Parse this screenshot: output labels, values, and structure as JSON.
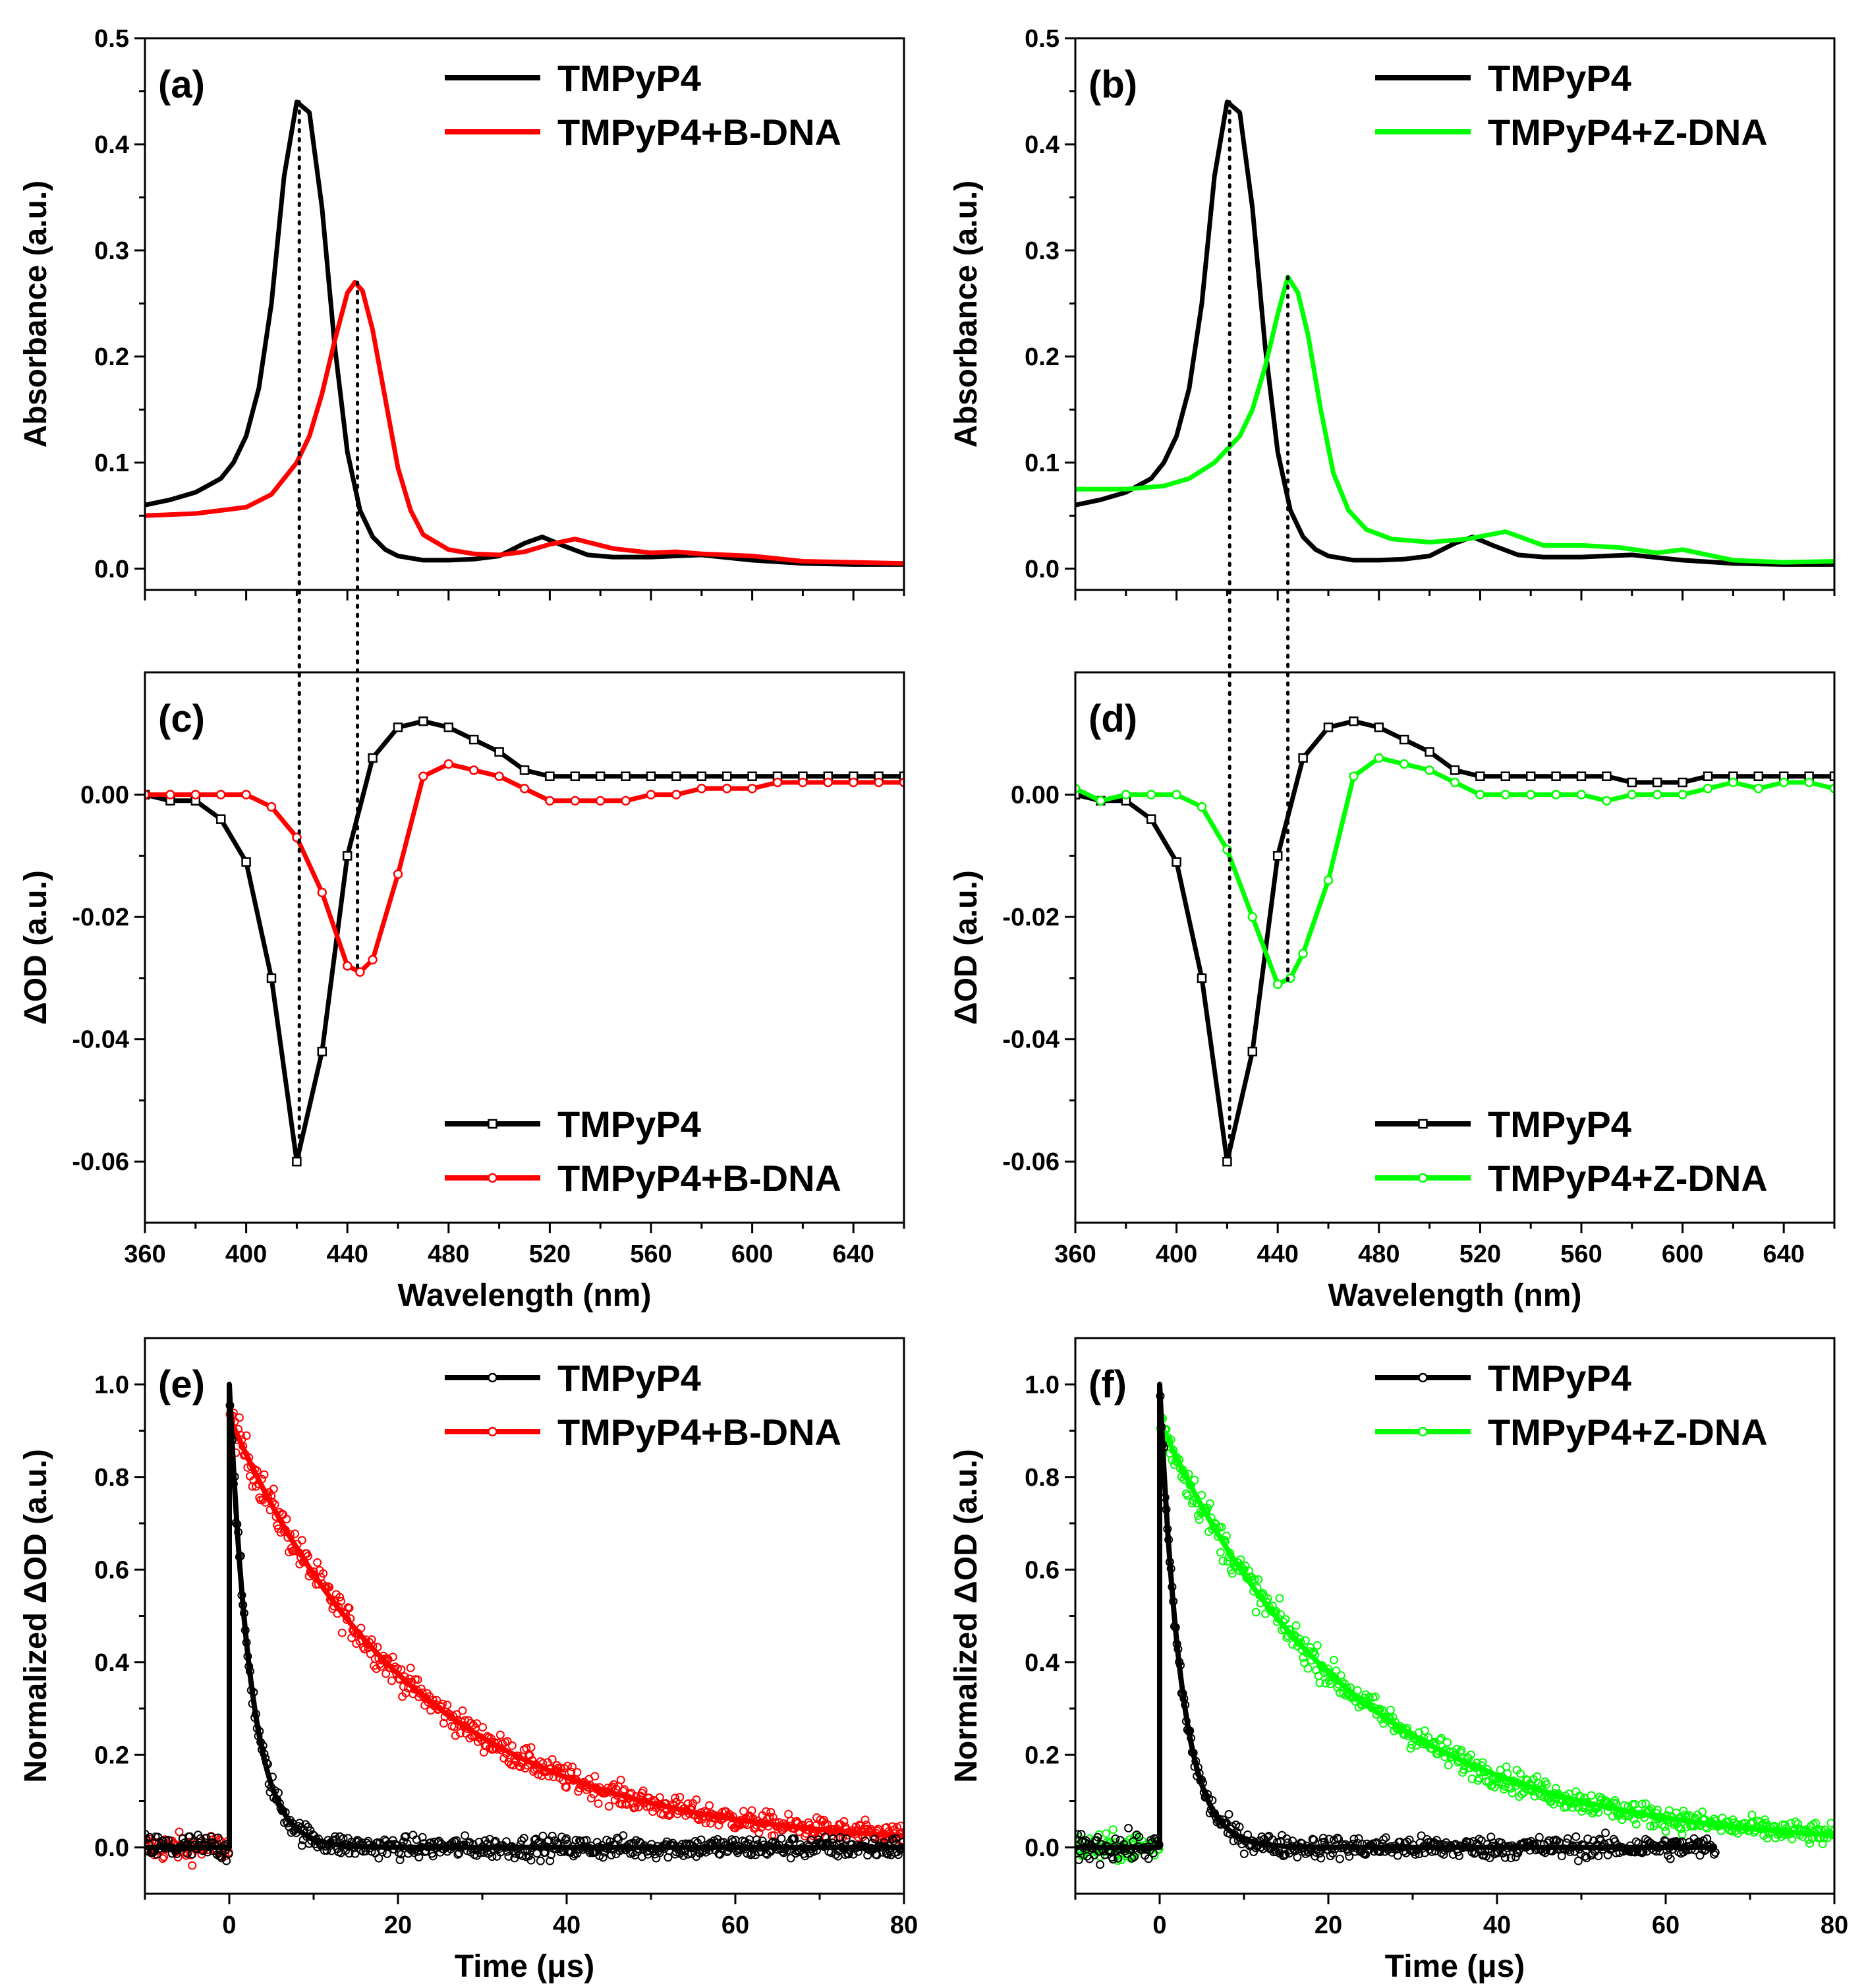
{
  "colors": {
    "tmpyp4": "#000000",
    "b_dna": "#ff0000",
    "z_dna": "#00ff00",
    "axis": "#000000"
  },
  "chart_data": [
    {
      "panel": "(a)",
      "type": "line",
      "xlabel": "",
      "ylabel": "Absorbance (a.u.)",
      "xlim": [
        360,
        660
      ],
      "ylim": [
        -0.02,
        0.5
      ],
      "xticks": [],
      "yticks": [
        0.0,
        0.1,
        0.2,
        0.3,
        0.4,
        0.5
      ],
      "ytick_labels": [
        "0.0",
        "0.1",
        "0.2",
        "0.3",
        "0.4",
        "0.5"
      ],
      "legend_position": "top-right",
      "series": [
        {
          "name": "TMPyP4",
          "color": "#000000",
          "x": [
            360,
            370,
            380,
            390,
            395,
            400,
            405,
            410,
            415,
            420,
            425,
            430,
            435,
            440,
            445,
            450,
            455,
            460,
            470,
            480,
            490,
            500,
            510,
            517,
            525,
            535,
            545,
            560,
            580,
            600,
            620,
            640,
            660
          ],
          "y": [
            0.06,
            0.065,
            0.072,
            0.085,
            0.1,
            0.125,
            0.17,
            0.25,
            0.37,
            0.44,
            0.43,
            0.34,
            0.21,
            0.11,
            0.055,
            0.03,
            0.018,
            0.012,
            0.008,
            0.008,
            0.009,
            0.012,
            0.024,
            0.03,
            0.022,
            0.013,
            0.011,
            0.011,
            0.013,
            0.008,
            0.005,
            0.004,
            0.004
          ]
        },
        {
          "name": "TMPyP4+B-DNA",
          "color": "#ff0000",
          "x": [
            360,
            380,
            400,
            410,
            420,
            425,
            430,
            435,
            440,
            443,
            446,
            450,
            455,
            460,
            465,
            470,
            480,
            490,
            500,
            510,
            520,
            530,
            545,
            560,
            570,
            580,
            600,
            620,
            640,
            660
          ],
          "y": [
            0.05,
            0.052,
            0.058,
            0.07,
            0.1,
            0.125,
            0.165,
            0.215,
            0.26,
            0.27,
            0.262,
            0.225,
            0.16,
            0.095,
            0.055,
            0.032,
            0.018,
            0.014,
            0.013,
            0.016,
            0.023,
            0.028,
            0.019,
            0.015,
            0.016,
            0.014,
            0.012,
            0.007,
            0.006,
            0.005
          ]
        }
      ],
      "dotted_guides": [
        421,
        444
      ]
    },
    {
      "panel": "(b)",
      "type": "line",
      "xlabel": "",
      "ylabel": "Absorbance (a.u.)",
      "xlim": [
        360,
        660
      ],
      "ylim": [
        -0.02,
        0.5
      ],
      "xticks": [],
      "yticks": [
        0.0,
        0.1,
        0.2,
        0.3,
        0.4,
        0.5
      ],
      "ytick_labels": [
        "0.0",
        "0.1",
        "0.2",
        "0.3",
        "0.4",
        "0.5"
      ],
      "legend_position": "top-right",
      "series": [
        {
          "name": "TMPyP4",
          "color": "#000000",
          "x": [
            360,
            370,
            380,
            390,
            395,
            400,
            405,
            410,
            415,
            420,
            425,
            430,
            435,
            440,
            445,
            450,
            455,
            460,
            470,
            480,
            490,
            500,
            510,
            517,
            525,
            535,
            545,
            560,
            580,
            600,
            620,
            640,
            660
          ],
          "y": [
            0.06,
            0.065,
            0.072,
            0.085,
            0.1,
            0.125,
            0.17,
            0.25,
            0.37,
            0.44,
            0.43,
            0.34,
            0.21,
            0.11,
            0.055,
            0.03,
            0.018,
            0.012,
            0.008,
            0.008,
            0.009,
            0.012,
            0.024,
            0.03,
            0.022,
            0.013,
            0.011,
            0.011,
            0.013,
            0.008,
            0.005,
            0.004,
            0.004
          ]
        },
        {
          "name": "TMPyP4+Z-DNA",
          "color": "#00ff00",
          "x": [
            360,
            380,
            395,
            405,
            415,
            425,
            430,
            435,
            440,
            444,
            448,
            452,
            457,
            462,
            468,
            475,
            485,
            500,
            515,
            530,
            545,
            560,
            575,
            590,
            600,
            620,
            640,
            660
          ],
          "y": [
            0.075,
            0.075,
            0.078,
            0.085,
            0.1,
            0.125,
            0.15,
            0.19,
            0.24,
            0.275,
            0.26,
            0.22,
            0.15,
            0.09,
            0.055,
            0.037,
            0.028,
            0.025,
            0.028,
            0.035,
            0.022,
            0.022,
            0.02,
            0.015,
            0.018,
            0.008,
            0.006,
            0.007
          ]
        }
      ],
      "dotted_guides": [
        421,
        444
      ]
    },
    {
      "panel": "(c)",
      "type": "line",
      "xlabel": "Wavelength (nm)",
      "ylabel": "ΔOD (a.u.)",
      "xlim": [
        360,
        660
      ],
      "ylim": [
        -0.07,
        0.02
      ],
      "xticks": [
        360,
        400,
        440,
        480,
        520,
        560,
        600,
        640
      ],
      "yticks": [
        -0.06,
        -0.04,
        -0.02,
        0.0
      ],
      "ytick_labels": [
        "-0.06",
        "-0.04",
        "-0.02",
        "0.00"
      ],
      "legend_position": "bottom-right",
      "series": [
        {
          "name": "TMPyP4",
          "color": "#000000",
          "x": [
            360,
            370,
            380,
            390,
            400,
            410,
            420,
            430,
            440,
            450,
            460,
            470,
            480,
            490,
            500,
            510,
            520,
            530,
            540,
            550,
            560,
            570,
            580,
            590,
            600,
            610,
            620,
            630,
            640,
            650,
            660
          ],
          "y": [
            0.0,
            -0.001,
            -0.001,
            -0.004,
            -0.011,
            -0.03,
            -0.06,
            -0.042,
            -0.01,
            0.006,
            0.011,
            0.012,
            0.011,
            0.009,
            0.007,
            0.004,
            0.003,
            0.003,
            0.003,
            0.003,
            0.003,
            0.003,
            0.003,
            0.003,
            0.003,
            0.003,
            0.003,
            0.003,
            0.003,
            0.003,
            0.003
          ]
        },
        {
          "name": "TMPyP4+B-DNA",
          "color": "#ff0000",
          "x": [
            360,
            370,
            380,
            390,
            400,
            410,
            420,
            430,
            440,
            445,
            450,
            460,
            470,
            480,
            490,
            500,
            510,
            520,
            530,
            540,
            550,
            560,
            570,
            580,
            590,
            600,
            610,
            620,
            630,
            640,
            650,
            660
          ],
          "y": [
            0.0,
            0.0,
            0.0,
            0.0,
            0.0,
            -0.002,
            -0.007,
            -0.016,
            -0.028,
            -0.029,
            -0.027,
            -0.013,
            0.003,
            0.005,
            0.004,
            0.003,
            0.001,
            -0.001,
            -0.001,
            -0.001,
            -0.001,
            0.0,
            0.0,
            0.001,
            0.001,
            0.001,
            0.002,
            0.002,
            0.002,
            0.002,
            0.002,
            0.002
          ]
        }
      ],
      "dotted_guides": [
        421,
        444
      ]
    },
    {
      "panel": "(d)",
      "type": "line",
      "xlabel": "Wavelength (nm)",
      "ylabel": "ΔOD (a.u.)",
      "xlim": [
        360,
        660
      ],
      "ylim": [
        -0.07,
        0.02
      ],
      "xticks": [
        360,
        400,
        440,
        480,
        520,
        560,
        600,
        640
      ],
      "yticks": [
        -0.06,
        -0.04,
        -0.02,
        0.0
      ],
      "ytick_labels": [
        "-0.06",
        "-0.04",
        "-0.02",
        "0.00"
      ],
      "legend_position": "bottom-right",
      "series": [
        {
          "name": "TMPyP4",
          "color": "#000000",
          "x": [
            360,
            370,
            380,
            390,
            400,
            410,
            420,
            430,
            440,
            450,
            460,
            470,
            480,
            490,
            500,
            510,
            520,
            530,
            540,
            550,
            560,
            570,
            580,
            590,
            600,
            610,
            620,
            630,
            640,
            650,
            660
          ],
          "y": [
            0.0,
            -0.001,
            -0.001,
            -0.004,
            -0.011,
            -0.03,
            -0.06,
            -0.042,
            -0.01,
            0.006,
            0.011,
            0.012,
            0.011,
            0.009,
            0.007,
            0.004,
            0.003,
            0.003,
            0.003,
            0.003,
            0.003,
            0.003,
            0.002,
            0.002,
            0.002,
            0.003,
            0.003,
            0.003,
            0.003,
            0.003,
            0.003
          ]
        },
        {
          "name": "TMPyP4+Z-DNA",
          "color": "#00ff00",
          "x": [
            360,
            370,
            380,
            390,
            400,
            410,
            420,
            430,
            440,
            445,
            450,
            460,
            470,
            480,
            490,
            500,
            510,
            520,
            530,
            540,
            550,
            560,
            570,
            580,
            590,
            600,
            610,
            620,
            630,
            640,
            650,
            660
          ],
          "y": [
            0.001,
            -0.001,
            0.0,
            0.0,
            0.0,
            -0.002,
            -0.009,
            -0.02,
            -0.031,
            -0.03,
            -0.026,
            -0.014,
            0.003,
            0.006,
            0.005,
            0.004,
            0.002,
            0.0,
            0.0,
            0.0,
            0.0,
            0.0,
            -0.001,
            0.0,
            0.0,
            0.0,
            0.001,
            0.002,
            0.001,
            0.002,
            0.002,
            0.001
          ]
        }
      ],
      "dotted_guides": [
        421,
        444
      ]
    },
    {
      "panel": "(e)",
      "type": "scatter",
      "xlabel": "Time (μs)",
      "ylabel": "Normalized ΔOD (a.u.)",
      "xlim": [
        -10,
        80
      ],
      "ylim": [
        -0.1,
        1.1
      ],
      "xticks": [
        0,
        20,
        40,
        60,
        80
      ],
      "yticks": [
        0.0,
        0.2,
        0.4,
        0.6,
        0.8,
        1.0
      ],
      "ytick_labels": [
        "0.0",
        "0.2",
        "0.4",
        "0.6",
        "0.8",
        "1.0"
      ],
      "legend_position": "top-right",
      "series": [
        {
          "name": "TMPyP4",
          "color": "#000000",
          "amplitude": 1.0,
          "lifetime_us": 2.5,
          "t_end": 80
        },
        {
          "name": "TMPyP4+B-DNA",
          "color": "#ff0000",
          "amplitude": 0.93,
          "lifetime_us": 22.0,
          "t_end": 80
        }
      ]
    },
    {
      "panel": "(f)",
      "type": "scatter",
      "xlabel": "Time (μs)",
      "ylabel": "Normalized ΔOD (a.u.)",
      "xlim": [
        -10,
        80
      ],
      "ylim": [
        -0.1,
        1.1
      ],
      "xticks": [
        0,
        20,
        40,
        60,
        80
      ],
      "yticks": [
        0.0,
        0.2,
        0.4,
        0.6,
        0.8,
        1.0
      ],
      "ytick_labels": [
        "0.0",
        "0.2",
        "0.4",
        "0.6",
        "0.8",
        "1.0"
      ],
      "legend_position": "top-right",
      "series": [
        {
          "name": "TMPyP4",
          "color": "#000000",
          "amplitude": 1.0,
          "lifetime_us": 2.5,
          "t_end": 66
        },
        {
          "name": "TMPyP4+Z-DNA",
          "color": "#00ff00",
          "amplitude": 0.92,
          "lifetime_us": 22.5,
          "t_end": 80
        }
      ]
    }
  ]
}
